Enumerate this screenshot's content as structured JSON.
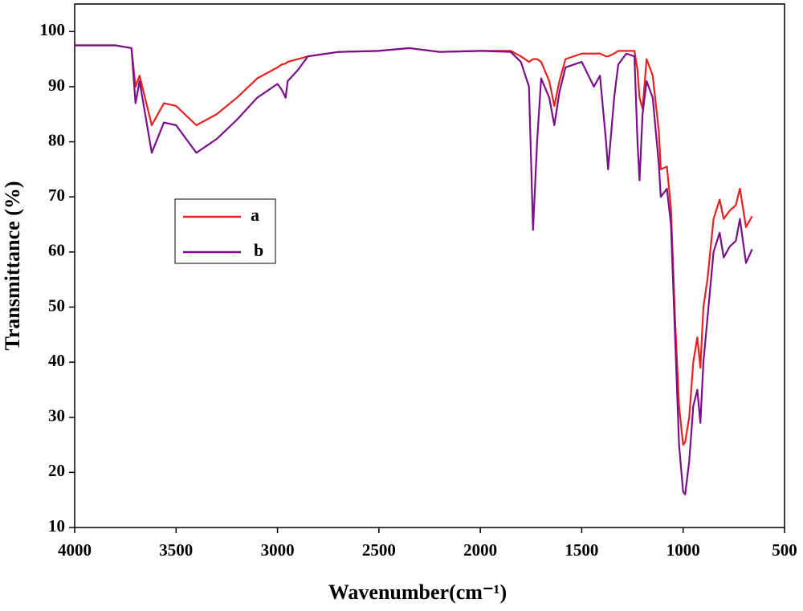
{
  "chart_data": {
    "type": "line",
    "x_label": "Wavenumber(cm⁻¹)",
    "y_label": "Transmittance (%)",
    "x": [
      4000,
      3800,
      3720,
      3700,
      3680,
      3620,
      3560,
      3500,
      3400,
      3300,
      3200,
      3100,
      3000,
      2980,
      2960,
      2950,
      2900,
      2850,
      2700,
      2500,
      2350,
      2200,
      2000,
      1850,
      1800,
      1760,
      1740,
      1720,
      1700,
      1660,
      1635,
      1610,
      1580,
      1500,
      1440,
      1410,
      1380,
      1370,
      1340,
      1320,
      1280,
      1240,
      1225,
      1215,
      1200,
      1180,
      1150,
      1120,
      1110,
      1080,
      1060,
      1040,
      1020,
      1000,
      990,
      970,
      950,
      930,
      915,
      900,
      880,
      850,
      820,
      800,
      770,
      740,
      720,
      690,
      660
    ],
    "series": [
      {
        "name": "a",
        "color": "#e8211e",
        "values": [
          97.5,
          97.5,
          97,
          90,
          92,
          83,
          87,
          86.5,
          83,
          85,
          88,
          91.5,
          93.5,
          94,
          94.2,
          94.5,
          95,
          95.5,
          96.3,
          96.5,
          97,
          96.3,
          96.5,
          96.5,
          95.5,
          94.5,
          95,
          95,
          94.5,
          91,
          86.5,
          91,
          95,
          96,
          96,
          96,
          95.5,
          95.5,
          96,
          96.5,
          96.5,
          96.5,
          93,
          88,
          86,
          95,
          92,
          82,
          75,
          75.5,
          68,
          48,
          32,
          25,
          25.5,
          30,
          40,
          44.5,
          39,
          50,
          55,
          66,
          69.5,
          66,
          67.5,
          68.5,
          71.5,
          64.5,
          66.5
        ]
      },
      {
        "name": "b",
        "color": "#7b0f8a",
        "values": [
          97.5,
          97.5,
          97,
          87,
          91,
          78,
          83.5,
          83,
          78,
          80.5,
          84,
          88,
          90.5,
          89.5,
          88,
          91,
          93,
          95.5,
          96.3,
          96.5,
          97,
          96.3,
          96.5,
          96.3,
          94.5,
          90,
          64,
          80,
          91.5,
          88,
          83,
          89,
          93.5,
          94.5,
          90,
          92,
          80,
          75,
          88,
          94,
          96,
          95.5,
          80,
          73,
          85,
          91,
          88,
          76,
          70,
          71.5,
          65,
          45,
          25,
          16.5,
          16,
          22,
          32,
          35,
          29,
          40,
          48,
          60,
          63.5,
          59,
          61,
          62,
          66,
          58,
          60.5
        ]
      }
    ],
    "xlim": [
      4000,
      500
    ],
    "xticks": [
      4000,
      3500,
      3000,
      2500,
      2000,
      1500,
      1000,
      500
    ],
    "ylim": [
      10,
      105
    ],
    "yticks": [
      10,
      20,
      30,
      40,
      50,
      60,
      70,
      80,
      90,
      100
    ],
    "grid": false
  }
}
